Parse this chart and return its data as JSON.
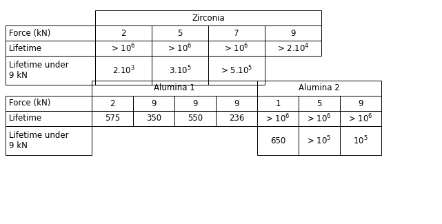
{
  "bg_color": "#ffffff",
  "line_color": "#000000",
  "font_size": 8.5,
  "fig_w": 6.41,
  "fig_h": 3.25,
  "table1": {
    "header": "Zirconia",
    "row_labels": [
      "Force (kN)",
      "Lifetime",
      "Lifetime under\n9 kN"
    ],
    "force": [
      "2",
      "5",
      "7",
      "9"
    ],
    "lifetime": [
      "> 10$^6$",
      "> 10$^6$",
      "> 10$^6$",
      "> 2.10$^4$"
    ],
    "under": [
      "2.10$^3$",
      "3.10$^5$",
      "> 5.10$^5$",
      ""
    ]
  },
  "table2": {
    "header1": "Alumina 1",
    "header2": "Alumina 2",
    "row_labels": [
      "Force (kN)",
      "Lifetime",
      "Lifetime under\n9 kN"
    ],
    "a1_force": [
      "2",
      "9",
      "9",
      "9"
    ],
    "a2_force": [
      "1",
      "5",
      "9"
    ],
    "a1_life": [
      "575",
      "350",
      "550",
      "236"
    ],
    "a2_life": [
      "> 10$^6$",
      "> 10$^6$",
      "> 10$^6$"
    ],
    "a1_under": [
      "",
      "",
      "",
      ""
    ],
    "a2_under": [
      "650",
      "> 10$^5$",
      "10$^5$"
    ]
  }
}
